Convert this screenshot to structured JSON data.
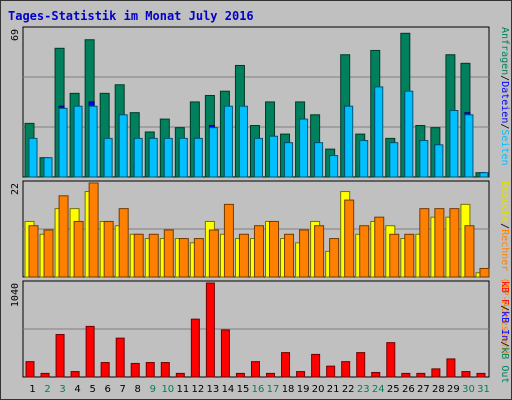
{
  "title": "Tages-Statistik im Monat July 2016",
  "colors": {
    "background": "#c0c0c0",
    "title": "#0000cc",
    "hits": "#00805c",
    "files": "#0000ff",
    "pages": "#00c0ff",
    "visits": "#ffff00",
    "sites": "#ff8000",
    "kbytes": "#ff0000",
    "weekend_day": "#00805c",
    "weekday": "#000000"
  },
  "legend": {
    "top": [
      {
        "text": "Anfragen",
        "color": "#00805c"
      },
      {
        "text": "/",
        "color": "#000000"
      },
      {
        "text": "Dateien",
        "color": "#0000ff"
      },
      {
        "text": "/",
        "color": "#000000"
      },
      {
        "text": "Seiten",
        "color": "#00c0ff"
      }
    ],
    "middle": [
      {
        "text": "Besuche",
        "color": "#e0e000"
      },
      {
        "text": "/",
        "color": "#000000"
      },
      {
        "text": "Rechner (IP-Adressen)",
        "color": "#ff8000"
      }
    ],
    "bottom": [
      {
        "text": "kB F",
        "color": "#ff0000"
      },
      {
        "text": "/",
        "color": "#000000"
      },
      {
        "text": "kB In",
        "color": "#0000ff"
      },
      {
        "text": "/",
        "color": "#000000"
      },
      {
        "text": "kB Out",
        "color": "#00805c"
      }
    ]
  },
  "chart_data": {
    "type": "bar",
    "title": "Tages-Statistik im Monat July 2016",
    "categories": [
      "1",
      "2",
      "3",
      "4",
      "5",
      "6",
      "7",
      "8",
      "9",
      "10",
      "11",
      "12",
      "13",
      "14",
      "15",
      "16",
      "17",
      "18",
      "19",
      "20",
      "21",
      "22",
      "23",
      "24",
      "25",
      "26",
      "27",
      "28",
      "29",
      "30",
      "31"
    ],
    "weekend_days": [
      "2",
      "3",
      "9",
      "10",
      "16",
      "17",
      "23",
      "24",
      "30",
      "31"
    ],
    "panels": [
      {
        "id": "hits-files-pages",
        "ymax": 69,
        "ymax_label": "69",
        "series": [
          {
            "name": "Anfragen",
            "color": "#00805c",
            "values": [
              25,
              9,
              60,
              39,
              64,
              39,
              43,
              30,
              21,
              27,
              23,
              35,
              38,
              40,
              52,
              24,
              35,
              20,
              35,
              29,
              13,
              57,
              20,
              59,
              18,
              67,
              24,
              23,
              57,
              53,
              2
            ]
          },
          {
            "name": "Dateien",
            "color": "#0000ff",
            "values": [
              18,
              7,
              33,
              33,
              35,
              17,
              29,
              6,
              18,
              16,
              16,
              18,
              24,
              30,
              28,
              17,
              19,
              16,
              27,
              16,
              10,
              33,
              7,
              40,
              16,
              39,
              17,
              15,
              31,
              30,
              2
            ]
          },
          {
            "name": "Seiten",
            "color": "#00c0ff",
            "values": [
              18,
              9,
              32,
              33,
              33,
              18,
              29,
              18,
              18,
              18,
              18,
              18,
              23,
              33,
              33,
              18,
              19,
              16,
              27,
              16,
              10,
              33,
              17,
              42,
              16,
              40,
              17,
              15,
              31,
              29,
              2
            ]
          }
        ]
      },
      {
        "id": "visits-sites",
        "ymax": 22,
        "ymax_label": "22",
        "series": [
          {
            "name": "Besuche",
            "color": "#ffff00",
            "values": [
              13,
              10,
              16,
              16,
              20,
              13,
              12,
              10,
              9,
              9,
              9,
              8,
              13,
              10,
              9,
              9,
              13,
              9,
              8,
              13,
              6,
              20,
              10,
              13,
              12,
              9,
              10,
              14,
              14,
              17,
              1
            ]
          },
          {
            "name": "Rechner (IP-Adressen)",
            "color": "#ff8000",
            "values": [
              12,
              11,
              19,
              13,
              22,
              13,
              16,
              10,
              10,
              11,
              9,
              9,
              11,
              17,
              10,
              12,
              13,
              10,
              11,
              12,
              9,
              18,
              12,
              14,
              10,
              10,
              16,
              16,
              16,
              12,
              2
            ]
          }
        ]
      },
      {
        "id": "kbytes",
        "ymax": 1040,
        "ymax_label": "1040",
        "series": [
          {
            "name": "kB F",
            "color": "#ff0000",
            "values": [
              170,
              40,
              470,
              60,
              560,
              160,
              430,
              150,
              160,
              160,
              40,
              640,
              1040,
              520,
              40,
              170,
              40,
              270,
              60,
              250,
              120,
              170,
              270,
              50,
              380,
              40,
              40,
              90,
              200,
              60,
              40
            ]
          }
        ]
      }
    ]
  }
}
